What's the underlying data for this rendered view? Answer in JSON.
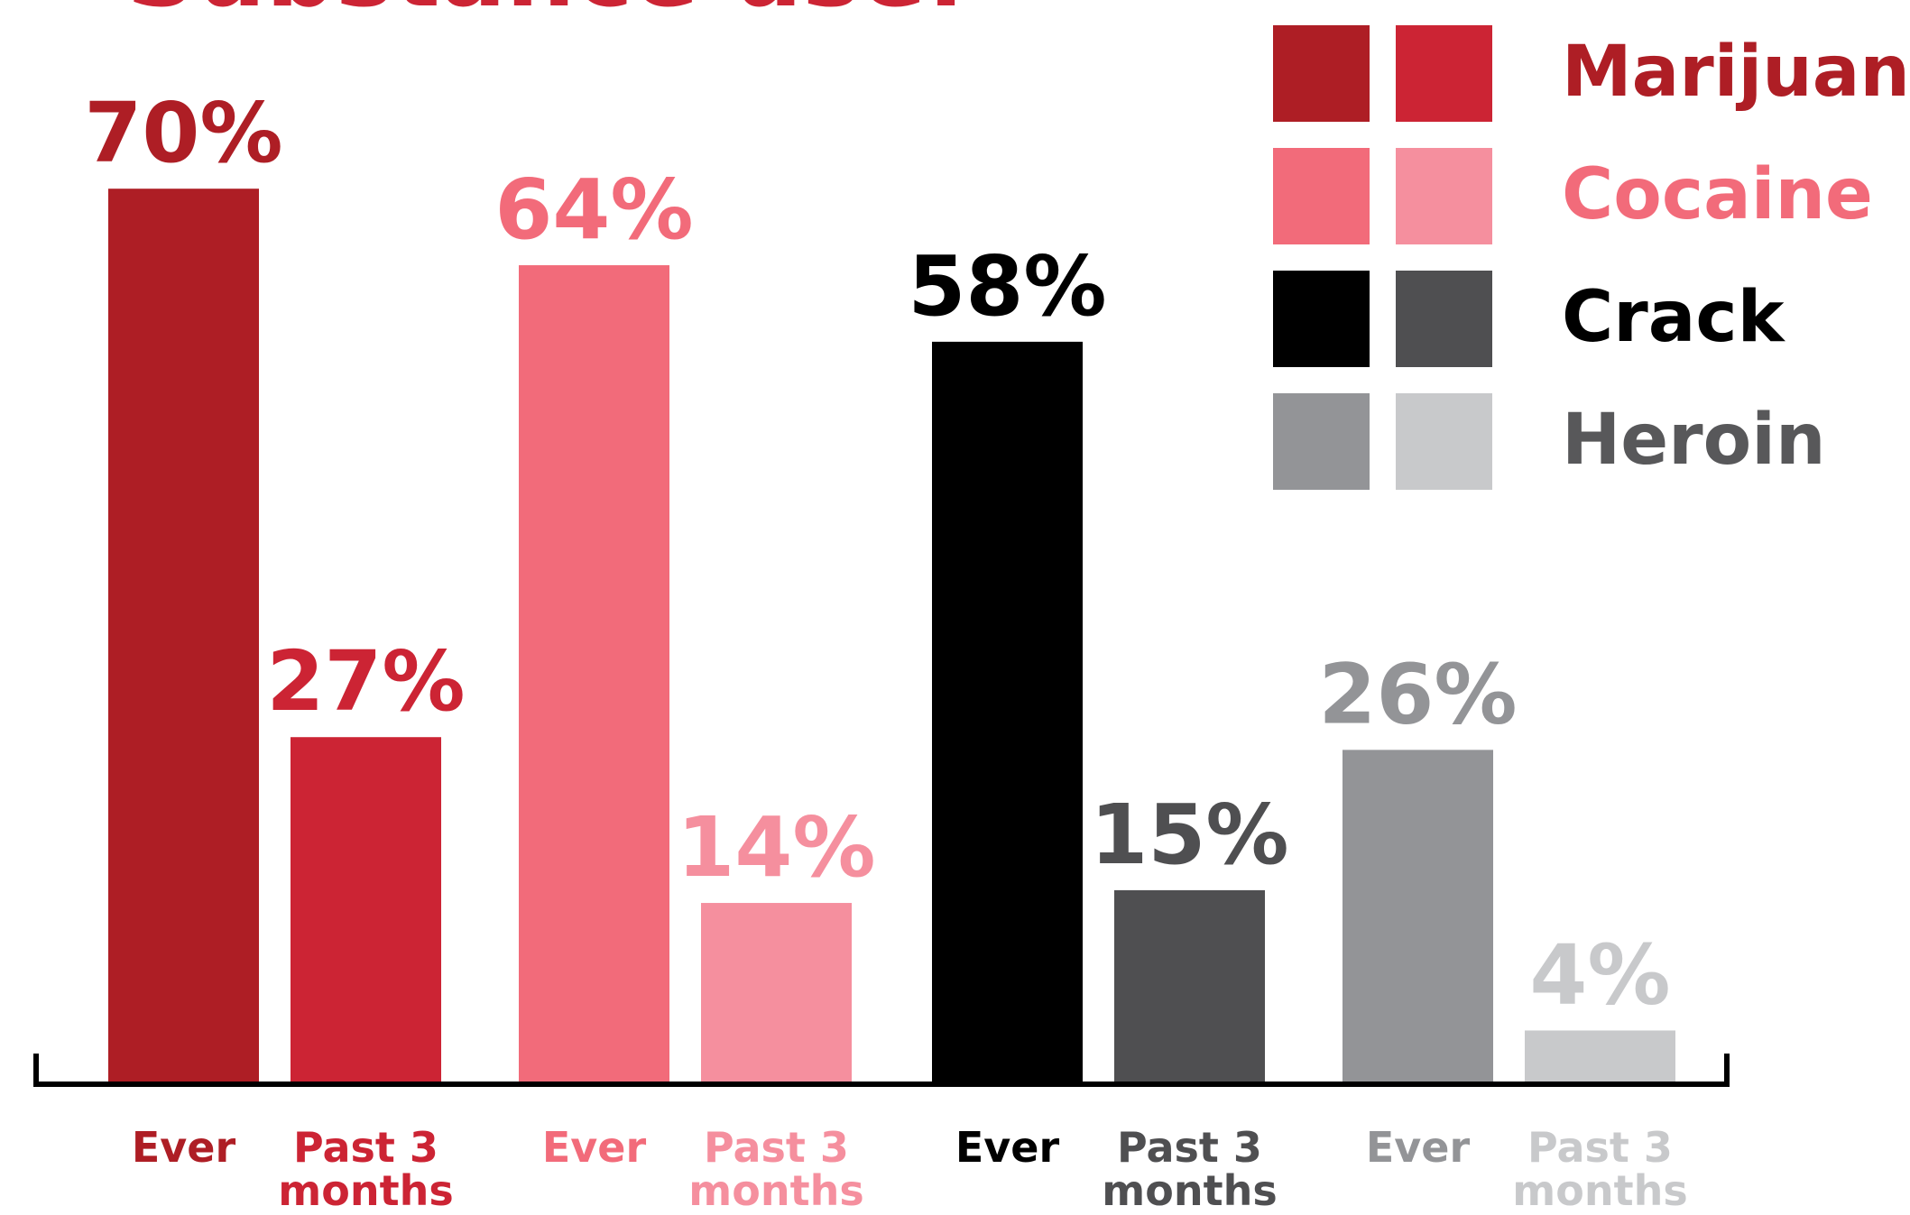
{
  "chart_data": {
    "type": "bar",
    "title": "Substance use:",
    "categories": [
      "Ever",
      "Past 3 months"
    ],
    "series": [
      {
        "name": "Marijuana",
        "colors": [
          "#ae1e25",
          "#cc2434"
        ],
        "legend_color": "#ae1e25",
        "values": [
          70,
          27
        ],
        "value_labels": [
          "70%",
          "27%"
        ]
      },
      {
        "name": "Cocaine",
        "colors": [
          "#f26b7a",
          "#f58f9e"
        ],
        "legend_color": "#f26b7a",
        "values": [
          64,
          14
        ],
        "value_labels": [
          "64%",
          "14%"
        ]
      },
      {
        "name": "Crack",
        "colors": [
          "#000000",
          "#4f4f51"
        ],
        "legend_color": "#000000",
        "values": [
          58,
          15
        ],
        "value_labels": [
          "58%",
          "15%"
        ]
      },
      {
        "name": "Heroin",
        "colors": [
          "#939497",
          "#c8c9cb"
        ],
        "legend_color": "#58585a",
        "values": [
          26,
          4
        ],
        "value_labels": [
          "26%",
          "4%"
        ]
      }
    ]
  }
}
